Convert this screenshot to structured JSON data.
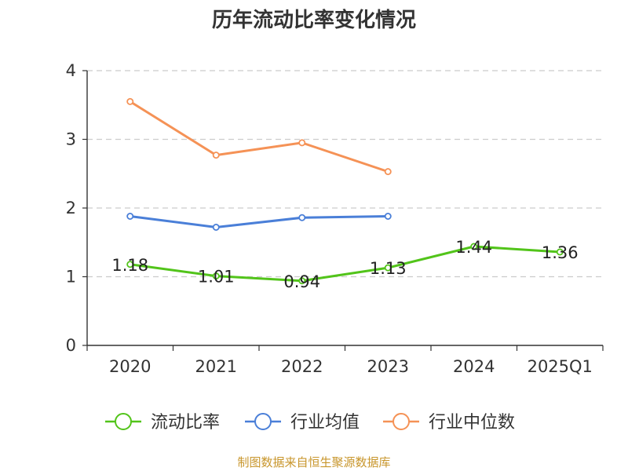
{
  "chart_data": {
    "type": "line",
    "title": "历年流动比率变化情况",
    "categories": [
      "2020",
      "2021",
      "2022",
      "2023",
      "2024",
      "2025Q1"
    ],
    "ylim": [
      0,
      4
    ],
    "yticks": [
      "0",
      "1",
      "2",
      "3",
      "4"
    ],
    "grid": true,
    "legend_position": "bottom",
    "series": [
      {
        "name": "流动比率",
        "color": "#52c41a",
        "values": [
          1.18,
          1.01,
          0.94,
          1.13,
          1.44,
          1.36
        ],
        "labels": [
          "1.18",
          "1.01",
          "0.94",
          "1.13",
          "1.44",
          "1.36"
        ]
      },
      {
        "name": "行业均值",
        "color": "#4a7fd8",
        "values": [
          1.88,
          1.72,
          1.86,
          1.88,
          null,
          null
        ]
      },
      {
        "name": "行业中位数",
        "color": "#f59256",
        "values": [
          3.55,
          2.77,
          2.95,
          2.53,
          null,
          null
        ]
      }
    ],
    "source": "制图数据来自恒生聚源数据库",
    "source_color": "#c8962c"
  }
}
